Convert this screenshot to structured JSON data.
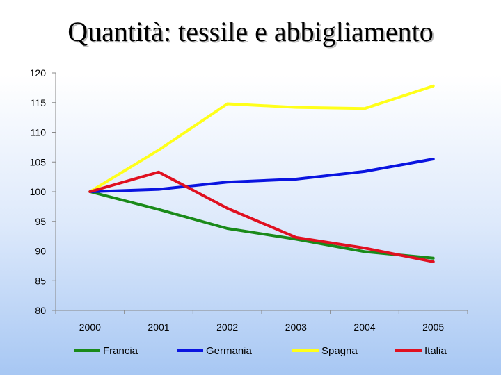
{
  "slide": {
    "title": "Quantità: tessile e abbigliamento"
  },
  "chart_data": {
    "type": "line",
    "title": "Quantità: tessile e abbigliamento",
    "xlabel": "",
    "ylabel": "",
    "categories": [
      "2000",
      "2001",
      "2002",
      "2003",
      "2004",
      "2005"
    ],
    "ylim": [
      80,
      120
    ],
    "yticks": [
      80,
      85,
      90,
      95,
      100,
      105,
      110,
      115,
      120
    ],
    "grid": false,
    "legend": "bottom",
    "series": [
      {
        "name": "Francia",
        "color": "#1a8a1a",
        "values": [
          100,
          97.0,
          93.8,
          92.0,
          89.9,
          88.8
        ]
      },
      {
        "name": "Germania",
        "color": "#0a14e0",
        "values": [
          100,
          100.4,
          101.6,
          102.1,
          103.4,
          105.5
        ]
      },
      {
        "name": "Spagna",
        "color": "#ffff1a",
        "values": [
          100,
          107.0,
          114.8,
          114.2,
          114.0,
          117.8
        ]
      },
      {
        "name": "Italia",
        "color": "#e01020",
        "values": [
          100,
          103.3,
          97.2,
          92.3,
          90.5,
          88.2
        ]
      }
    ]
  }
}
